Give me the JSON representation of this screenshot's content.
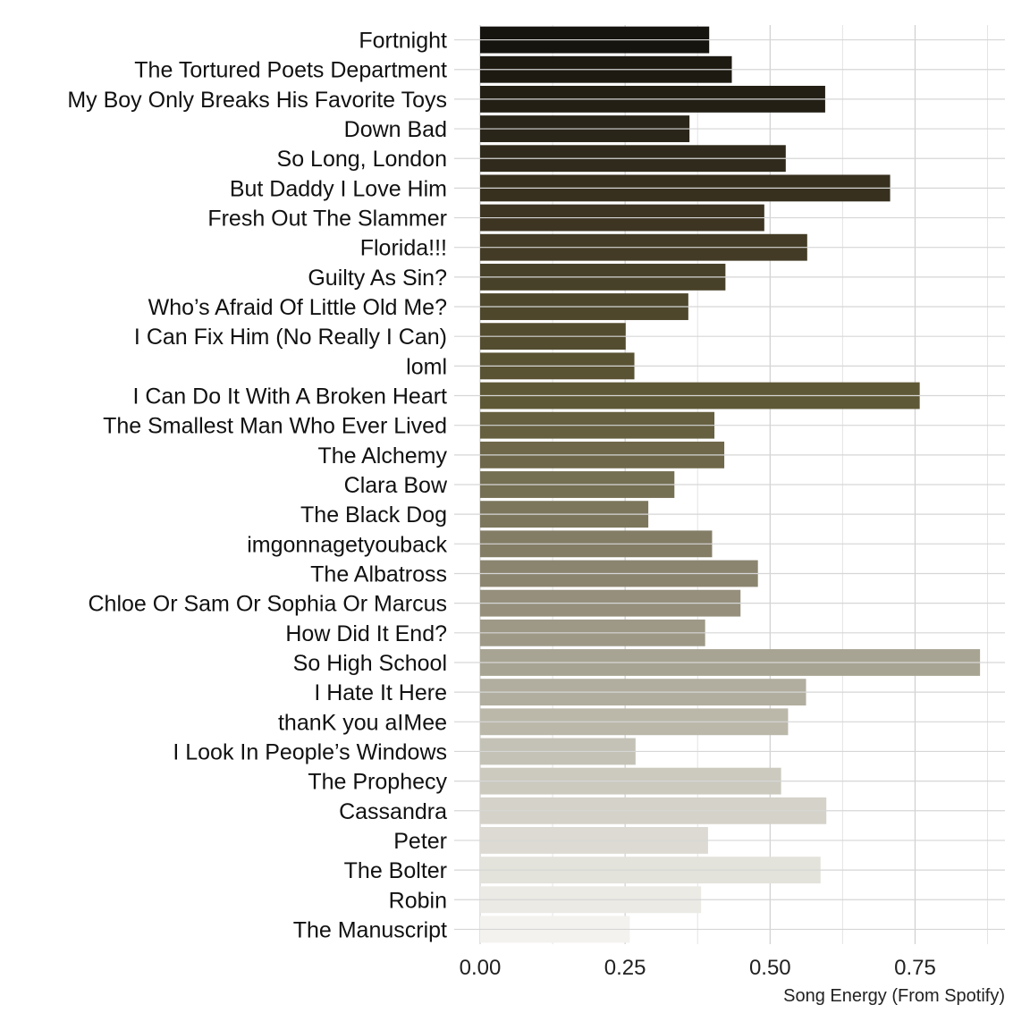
{
  "chart_data": {
    "type": "bar",
    "orientation": "horizontal",
    "title": "",
    "xlabel": "Song Energy (From Spotify)",
    "ylabel": "",
    "xlim": [
      0,
      0.905
    ],
    "x_ticks": [
      0.0,
      0.25,
      0.5,
      0.75
    ],
    "x_tick_labels": [
      "0.00",
      "0.25",
      "0.50",
      "0.75"
    ],
    "grid": true,
    "legend": "none",
    "color_gradient": [
      "#16140f",
      "#3d3522",
      "#5f5836",
      "#8b8570",
      "#c4c2b6",
      "#f3f2ee"
    ],
    "categories": [
      "Fortnight",
      "The Tortured Poets Department",
      "My Boy Only Breaks His Favorite Toys",
      "Down Bad",
      "So Long, London",
      "But Daddy I Love Him",
      "Fresh Out The Slammer",
      "Florida!!!",
      "Guilty As Sin?",
      "Who’s Afraid Of Little Old Me?",
      "I Can Fix Him (No Really I Can)",
      "loml",
      "I Can Do It With A Broken Heart",
      "The Smallest Man Who Ever Lived",
      "The Alchemy",
      "Clara Bow",
      "The Black Dog",
      "imgonnagetyouback",
      "The Albatross",
      "Chloe Or Sam Or Sophia Or Marcus",
      "How Did It End?",
      "So High School",
      "I Hate It Here",
      "thanK you aIMee",
      "I Look In People’s Windows",
      "The Prophecy",
      "Cassandra",
      "Peter",
      "The Bolter",
      "Robin",
      "The Manuscript"
    ],
    "values": [
      0.395,
      0.434,
      0.595,
      0.361,
      0.527,
      0.707,
      0.49,
      0.564,
      0.423,
      0.359,
      0.251,
      0.266,
      0.758,
      0.404,
      0.421,
      0.335,
      0.29,
      0.4,
      0.479,
      0.449,
      0.388,
      0.862,
      0.562,
      0.531,
      0.268,
      0.519,
      0.597,
      0.393,
      0.587,
      0.381,
      0.258
    ]
  }
}
